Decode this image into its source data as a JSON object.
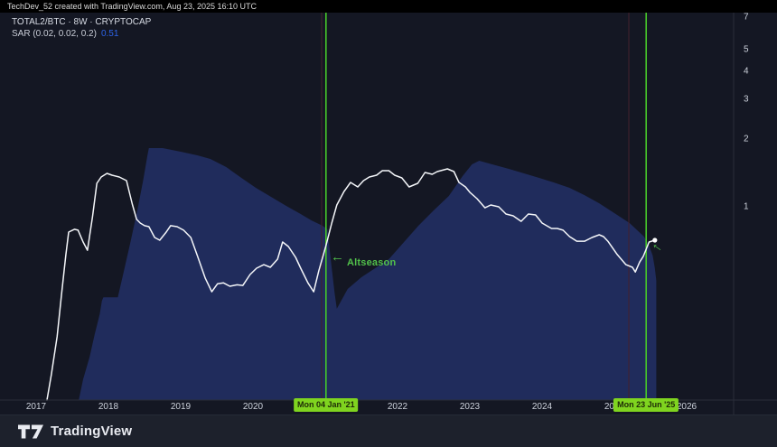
{
  "attribution": {
    "text": "TechDev_52 created with TradingView.com, Aug 23, 2025 16:10 UTC"
  },
  "legend": {
    "symbol": "TOTAL2/BTC · 8W · CRYPTOCAP",
    "indicator": "SAR (0.02, 0.02, 0.2)",
    "indicator_value": "0.51"
  },
  "annotations": {
    "altseason": "Altseason",
    "arrow_glyph": "←"
  },
  "footer": {
    "brand": "TradingView"
  },
  "colors": {
    "background": "#141723",
    "topbar": "#000000",
    "footer": "#1d212c",
    "axis_border": "#2a2e39",
    "axis_text": "#ccd1db",
    "price_line": "#f4f6f9",
    "sar_area": "#202c5c",
    "event_line": "#47c52a",
    "event_badge_bg": "#7fd41f",
    "annotation_green": "#52c14b",
    "sar_value_blue": "#2d63e8",
    "aux_line": "#44202c"
  },
  "chart_data": {
    "type": "line",
    "title": "TOTAL2/BTC 8W with Parabolic SAR (0.02, 0.02, 0.2)",
    "x_unit": "year",
    "xlim": [
      2016.5,
      2027.25
    ],
    "ylog": true,
    "ylim": [
      0.13,
      8.0
    ],
    "grid": "off",
    "x_ticks": [
      {
        "label": "2017",
        "year": 2017
      },
      {
        "label": "2018",
        "year": 2018
      },
      {
        "label": "2019",
        "year": 2019
      },
      {
        "label": "2020",
        "year": 2020
      },
      {
        "label": "2021",
        "year": 2021
      },
      {
        "label": "2022",
        "year": 2022
      },
      {
        "label": "2023",
        "year": 2023
      },
      {
        "label": "2024",
        "year": 2024
      },
      {
        "label": "2025",
        "year": 2025
      },
      {
        "label": "2026",
        "year": 2026
      }
    ],
    "y_ticks": [
      {
        "label": "7",
        "value": 7
      },
      {
        "label": "5",
        "value": 5
      },
      {
        "label": "4",
        "value": 4
      },
      {
        "label": "3",
        "value": 3
      },
      {
        "label": "2",
        "value": 2
      },
      {
        "label": "1",
        "value": 1
      }
    ],
    "events": [
      {
        "label": "Mon 04 Jan '21",
        "year": 2021.01
      },
      {
        "label": "Mon 23 Jun '25",
        "year": 2025.44
      }
    ],
    "aux_vlines": [
      {
        "year": 2020.95
      },
      {
        "year": 2025.2
      }
    ],
    "marker": [
      2025.56,
      0.71
    ],
    "series": [
      {
        "name": "TOTAL2/BTC",
        "type": "line",
        "color": "#f4f6f9",
        "points": [
          [
            2017.15,
            0.138
          ],
          [
            2017.21,
            0.179
          ],
          [
            2017.29,
            0.264
          ],
          [
            2017.35,
            0.404
          ],
          [
            2017.41,
            0.607
          ],
          [
            2017.45,
            0.772
          ],
          [
            2017.53,
            0.794
          ],
          [
            2017.58,
            0.787
          ],
          [
            2017.65,
            0.697
          ],
          [
            2017.71,
            0.641
          ],
          [
            2017.78,
            0.903
          ],
          [
            2017.84,
            1.272
          ],
          [
            2017.9,
            1.357
          ],
          [
            2017.98,
            1.408
          ],
          [
            2018.05,
            1.382
          ],
          [
            2018.15,
            1.357
          ],
          [
            2018.25,
            1.307
          ],
          [
            2018.33,
            1.028
          ],
          [
            2018.39,
            0.879
          ],
          [
            2018.44,
            0.847
          ],
          [
            2018.5,
            0.824
          ],
          [
            2018.56,
            0.816
          ],
          [
            2018.64,
            0.73
          ],
          [
            2018.71,
            0.71
          ],
          [
            2018.8,
            0.772
          ],
          [
            2018.86,
            0.824
          ],
          [
            2018.95,
            0.816
          ],
          [
            2019.04,
            0.787
          ],
          [
            2019.14,
            0.73
          ],
          [
            2019.23,
            0.607
          ],
          [
            2019.34,
            0.481
          ],
          [
            2019.43,
            0.419
          ],
          [
            2019.51,
            0.455
          ],
          [
            2019.59,
            0.459
          ],
          [
            2019.68,
            0.443
          ],
          [
            2019.78,
            0.45
          ],
          [
            2019.86,
            0.447
          ],
          [
            2019.96,
            0.5
          ],
          [
            2020.05,
            0.533
          ],
          [
            2020.15,
            0.553
          ],
          [
            2020.24,
            0.538
          ],
          [
            2020.34,
            0.585
          ],
          [
            2020.41,
            0.697
          ],
          [
            2020.49,
            0.666
          ],
          [
            2020.59,
            0.596
          ],
          [
            2020.66,
            0.533
          ],
          [
            2020.76,
            0.459
          ],
          [
            2020.84,
            0.419
          ],
          [
            2020.91,
            0.518
          ],
          [
            2021.01,
            0.672
          ],
          [
            2021.09,
            0.847
          ],
          [
            2021.16,
            1.019
          ],
          [
            2021.26,
            1.17
          ],
          [
            2021.35,
            1.284
          ],
          [
            2021.45,
            1.226
          ],
          [
            2021.53,
            1.307
          ],
          [
            2021.61,
            1.357
          ],
          [
            2021.71,
            1.382
          ],
          [
            2021.79,
            1.447
          ],
          [
            2021.88,
            1.447
          ],
          [
            2021.96,
            1.382
          ],
          [
            2022.06,
            1.344
          ],
          [
            2022.16,
            1.226
          ],
          [
            2022.28,
            1.272
          ],
          [
            2022.38,
            1.421
          ],
          [
            2022.48,
            1.395
          ],
          [
            2022.55,
            1.434
          ],
          [
            2022.69,
            1.474
          ],
          [
            2022.78,
            1.434
          ],
          [
            2022.85,
            1.284
          ],
          [
            2022.94,
            1.226
          ],
          [
            2023.0,
            1.16
          ],
          [
            2023.1,
            1.087
          ],
          [
            2023.21,
            0.99
          ],
          [
            2023.29,
            1.019
          ],
          [
            2023.4,
            1.0
          ],
          [
            2023.5,
            0.929
          ],
          [
            2023.6,
            0.912
          ],
          [
            2023.71,
            0.862
          ],
          [
            2023.81,
            0.929
          ],
          [
            2023.91,
            0.92
          ],
          [
            2024.0,
            0.847
          ],
          [
            2024.13,
            0.801
          ],
          [
            2024.21,
            0.801
          ],
          [
            2024.29,
            0.787
          ],
          [
            2024.38,
            0.737
          ],
          [
            2024.48,
            0.703
          ],
          [
            2024.59,
            0.703
          ],
          [
            2024.69,
            0.73
          ],
          [
            2024.79,
            0.751
          ],
          [
            2024.85,
            0.737
          ],
          [
            2024.91,
            0.703
          ],
          [
            2025.04,
            0.613
          ],
          [
            2025.16,
            0.553
          ],
          [
            2025.25,
            0.538
          ],
          [
            2025.29,
            0.513
          ],
          [
            2025.35,
            0.568
          ],
          [
            2025.4,
            0.602
          ],
          [
            2025.48,
            0.697
          ],
          [
            2025.56,
            0.71
          ]
        ]
      },
      {
        "name": "SAR",
        "type": "area",
        "color": "#202c5c",
        "points": [
          [
            2017.59,
            0.138
          ],
          [
            2017.65,
            0.171
          ],
          [
            2017.74,
            0.215
          ],
          [
            2017.81,
            0.271
          ],
          [
            2017.88,
            0.333
          ],
          [
            2017.91,
            0.382
          ],
          [
            2017.93,
            0.396
          ],
          [
            2018.13,
            0.396
          ],
          [
            2018.2,
            0.495
          ],
          [
            2018.3,
            0.685
          ],
          [
            2018.4,
            0.964
          ],
          [
            2018.48,
            1.307
          ],
          [
            2018.54,
            1.694
          ],
          [
            2018.56,
            1.824
          ],
          [
            2018.75,
            1.824
          ],
          [
            2019.0,
            1.758
          ],
          [
            2019.23,
            1.694
          ],
          [
            2019.41,
            1.633
          ],
          [
            2019.63,
            1.502
          ],
          [
            2019.84,
            1.344
          ],
          [
            2020.04,
            1.214
          ],
          [
            2020.25,
            1.107
          ],
          [
            2020.46,
            1.009
          ],
          [
            2020.66,
            0.929
          ],
          [
            2020.81,
            0.87
          ],
          [
            2020.96,
            0.824
          ],
          [
            2021.03,
            0.794
          ],
          [
            2021.08,
            0.568
          ],
          [
            2021.13,
            0.412
          ],
          [
            2021.16,
            0.352
          ],
          [
            2021.31,
            0.431
          ],
          [
            2021.5,
            0.486
          ],
          [
            2021.69,
            0.533
          ],
          [
            2021.88,
            0.585
          ],
          [
            2022.09,
            0.697
          ],
          [
            2022.29,
            0.824
          ],
          [
            2022.5,
            0.964
          ],
          [
            2022.71,
            1.117
          ],
          [
            2022.9,
            1.369
          ],
          [
            2023.03,
            1.545
          ],
          [
            2023.13,
            1.602
          ],
          [
            2023.31,
            1.545
          ],
          [
            2023.54,
            1.474
          ],
          [
            2023.75,
            1.408
          ],
          [
            2023.96,
            1.344
          ],
          [
            2024.16,
            1.284
          ],
          [
            2024.38,
            1.214
          ],
          [
            2024.59,
            1.126
          ],
          [
            2024.79,
            1.037
          ],
          [
            2025.0,
            0.937
          ],
          [
            2025.21,
            0.847
          ],
          [
            2025.41,
            0.737
          ],
          [
            2025.48,
            0.672
          ],
          [
            2025.53,
            0.607
          ],
          [
            2025.56,
            0.533
          ],
          [
            2025.58,
            0.47
          ],
          [
            2025.58,
            0.138
          ]
        ]
      }
    ]
  }
}
